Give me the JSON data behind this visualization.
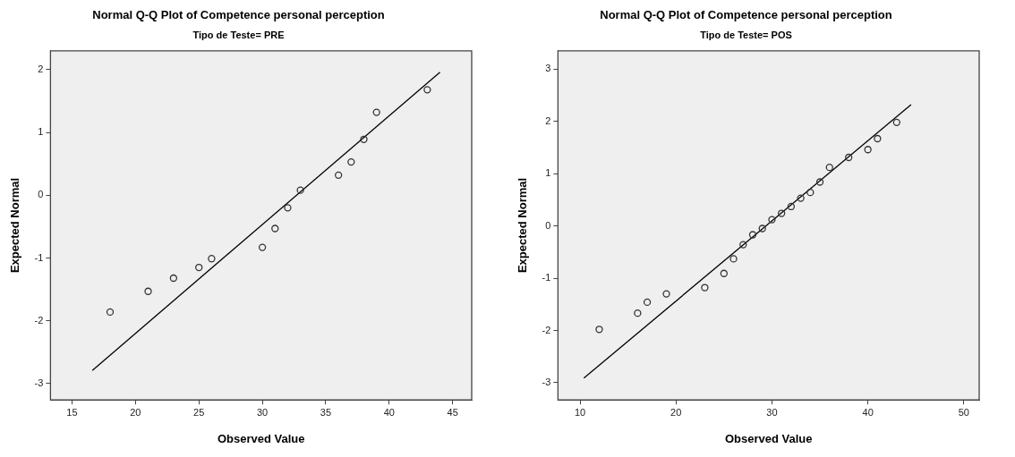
{
  "chart_data": [
    {
      "type": "scatter",
      "title": "Normal Q-Q Plot of Competence personal perception",
      "subtitle": "Tipo de Teste= PRE",
      "xlabel": "Observed Value",
      "ylabel": "Expected Normal",
      "xlim": [
        13.3,
        46.5
      ],
      "ylim": [
        -3.26,
        2.3
      ],
      "xticks": [
        15,
        20,
        25,
        30,
        35,
        40,
        45
      ],
      "yticks": [
        -3,
        -2,
        -1,
        0,
        1,
        2
      ],
      "grid": false,
      "legend": false,
      "series": [
        {
          "marker": "circle",
          "color": "#333333",
          "x": [
            18,
            21,
            23,
            25,
            26,
            30,
            31,
            32,
            33,
            36,
            37,
            38,
            39,
            43
          ],
          "values": [
            -1.86,
            -1.53,
            -1.32,
            -1.15,
            -1.01,
            -0.83,
            -0.53,
            -0.2,
            0.08,
            0.32,
            0.53,
            0.89,
            1.32,
            1.68
          ]
        },
        {
          "type": "line",
          "color": "#000000",
          "x": [
            16.6,
            44.0
          ],
          "values": [
            -2.79,
            1.96
          ]
        }
      ]
    },
    {
      "type": "scatter",
      "title": "Normal Q-Q Plot of Competence personal perception",
      "subtitle": "Tipo de Teste= POS",
      "xlabel": "Observed Value",
      "ylabel": "Expected Normal",
      "xlim": [
        7.7,
        51.6
      ],
      "ylim": [
        -3.33,
        3.35
      ],
      "xticks": [
        10,
        20,
        30,
        40,
        50
      ],
      "yticks": [
        -3,
        -2,
        -1,
        0,
        1,
        2,
        3
      ],
      "grid": false,
      "legend": false,
      "series": [
        {
          "marker": "circle",
          "color": "#333333",
          "x": [
            12,
            16,
            17,
            19,
            23,
            25,
            26,
            27,
            28,
            29,
            30,
            31,
            32,
            33,
            34,
            35,
            36,
            38,
            40,
            41,
            43
          ],
          "values": [
            -1.98,
            -1.67,
            -1.46,
            -1.3,
            -1.18,
            -0.91,
            -0.63,
            -0.36,
            -0.17,
            -0.05,
            0.12,
            0.24,
            0.37,
            0.53,
            0.64,
            0.84,
            1.12,
            1.31,
            1.46,
            1.67,
            1.98
          ]
        },
        {
          "type": "line",
          "color": "#000000",
          "x": [
            10.4,
            44.5
          ],
          "values": [
            -2.91,
            2.32
          ]
        }
      ]
    }
  ]
}
